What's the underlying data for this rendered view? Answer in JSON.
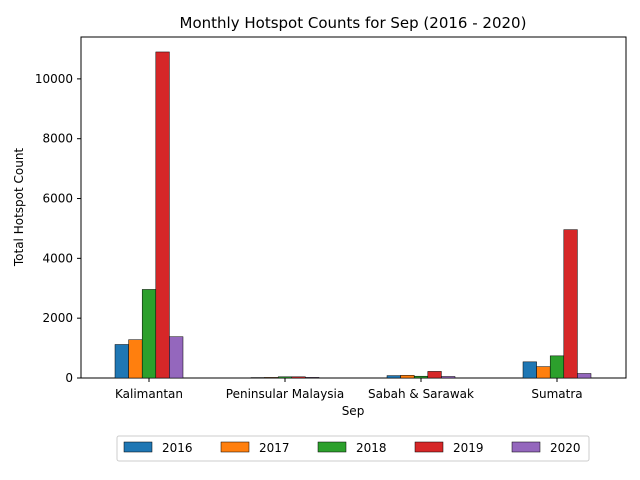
{
  "chart_data": {
    "type": "bar",
    "title": "Monthly Hotspot Counts for Sep (2016 - 2020)",
    "xlabel": "Sep",
    "ylabel": "Total Hotspot Count",
    "categories": [
      "Kalimantan",
      "Peninsular Malaysia",
      "Sabah & Sarawak",
      "Sumatra"
    ],
    "ylim": [
      0,
      11400
    ],
    "yticks": [
      0,
      2000,
      4000,
      6000,
      8000,
      10000
    ],
    "grid": false,
    "legend_position": "bottom-center",
    "series": [
      {
        "name": "2016",
        "color": "#1f77b4",
        "values": [
          1120,
          15,
          80,
          540
        ]
      },
      {
        "name": "2017",
        "color": "#ff7f0e",
        "values": [
          1280,
          20,
          90,
          380
        ]
      },
      {
        "name": "2018",
        "color": "#2ca02c",
        "values": [
          2960,
          40,
          60,
          740
        ]
      },
      {
        "name": "2019",
        "color": "#d62728",
        "values": [
          10900,
          40,
          220,
          4960
        ]
      },
      {
        "name": "2020",
        "color": "#9467bd",
        "values": [
          1380,
          20,
          50,
          150
        ]
      }
    ]
  }
}
